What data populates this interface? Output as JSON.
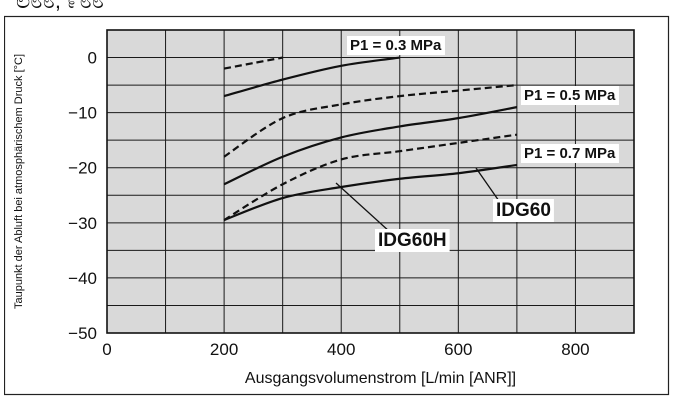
{
  "header_fragment": "ಲ೮೮, ೯೮೮",
  "chart_data": {
    "type": "line",
    "title": "",
    "xlabel": "Ausgangsvolumenstrom [L/min [ANR]]",
    "ylabel": "Taupunkt der Abluft bei atmosphärischem Druck [°C]",
    "xlim": [
      0,
      900
    ],
    "ylim": [
      -50,
      5
    ],
    "x_ticks": [
      0,
      200,
      400,
      600,
      800
    ],
    "x_tick_labels": [
      "0",
      "200",
      "400",
      "600",
      "800"
    ],
    "y_ticks": [
      0,
      -10,
      -20,
      -30,
      -40,
      -50
    ],
    "y_tick_labels": [
      "0",
      "−10",
      "−20",
      "−30",
      "−40",
      "−50"
    ],
    "grid": true,
    "background": "#d9d9d9",
    "series": [
      {
        "group": "P1 = 0.3 MPa",
        "model": "IDG60",
        "style": "solid",
        "x": [
          200,
          300,
          400,
          500
        ],
        "y": [
          -7,
          -4,
          -1.5,
          0
        ]
      },
      {
        "group": "P1 = 0.3 MPa",
        "model": "IDG60H",
        "style": "dashed",
        "x": [
          200,
          250,
          300
        ],
        "y": [
          -2,
          -1,
          0
        ]
      },
      {
        "group": "P1 = 0.5 MPa",
        "model": "IDG60",
        "style": "solid",
        "x": [
          200,
          300,
          400,
          500,
          600,
          700
        ],
        "y": [
          -23,
          -18,
          -14.5,
          -12.5,
          -11,
          -9
        ]
      },
      {
        "group": "P1 = 0.5 MPa",
        "model": "IDG60H",
        "style": "dashed",
        "x": [
          200,
          300,
          400,
          500,
          600,
          700
        ],
        "y": [
          -18,
          -11,
          -8.5,
          -7,
          -6,
          -5
        ]
      },
      {
        "group": "P1 = 0.7 MPa",
        "model": "IDG60",
        "style": "solid",
        "x": [
          200,
          300,
          400,
          500,
          600,
          700
        ],
        "y": [
          -29.5,
          -25.5,
          -23.5,
          -22,
          -21,
          -19.5
        ]
      },
      {
        "group": "P1 = 0.7 MPa",
        "model": "IDG60H",
        "style": "dashed",
        "x": [
          200,
          300,
          400,
          500,
          600,
          700
        ],
        "y": [
          -29.5,
          -23,
          -18.5,
          -17,
          -15.5,
          -14
        ]
      }
    ],
    "annotations": [
      {
        "text": "P1 = 0.3 MPa"
      },
      {
        "text": "P1 = 0.5 MPa"
      },
      {
        "text": "P1 = 0.7 MPa"
      },
      {
        "text": "IDG60"
      },
      {
        "text": "IDG60H"
      }
    ]
  }
}
